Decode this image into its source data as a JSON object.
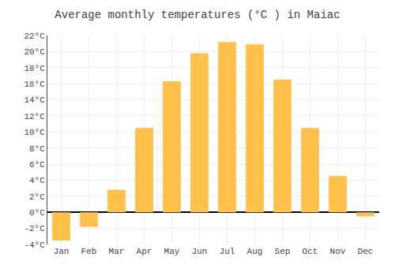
{
  "chart_data": {
    "type": "bar",
    "title": "Average monthly temperatures (°C ) in Maiac",
    "categories": [
      "Jan",
      "Feb",
      "Mar",
      "Apr",
      "May",
      "Jun",
      "Jul",
      "Aug",
      "Sep",
      "Oct",
      "Nov",
      "Dec"
    ],
    "values": [
      -3.5,
      -1.8,
      2.8,
      10.5,
      16.3,
      19.8,
      21.2,
      20.9,
      16.5,
      10.5,
      4.5,
      -0.5
    ],
    "color": "#FFC04C",
    "ylim": [
      -4,
      22
    ],
    "yticks": [
      {
        "value": -4,
        "label": "-4°C"
      },
      {
        "value": -2,
        "label": "-2°C"
      },
      {
        "value": 0,
        "label": "0°C"
      },
      {
        "value": 2,
        "label": "2°C"
      },
      {
        "value": 4,
        "label": "4°C"
      },
      {
        "value": 6,
        "label": "6°C"
      },
      {
        "value": 8,
        "label": "8°C"
      },
      {
        "value": 10,
        "label": "10°C"
      },
      {
        "value": 12,
        "label": "12°C"
      },
      {
        "value": 14,
        "label": "14°C"
      },
      {
        "value": 16,
        "label": "16°C"
      },
      {
        "value": 18,
        "label": "18°C"
      },
      {
        "value": 20,
        "label": "20°C"
      },
      {
        "value": 22,
        "label": "22°C"
      }
    ],
    "grid": true
  }
}
